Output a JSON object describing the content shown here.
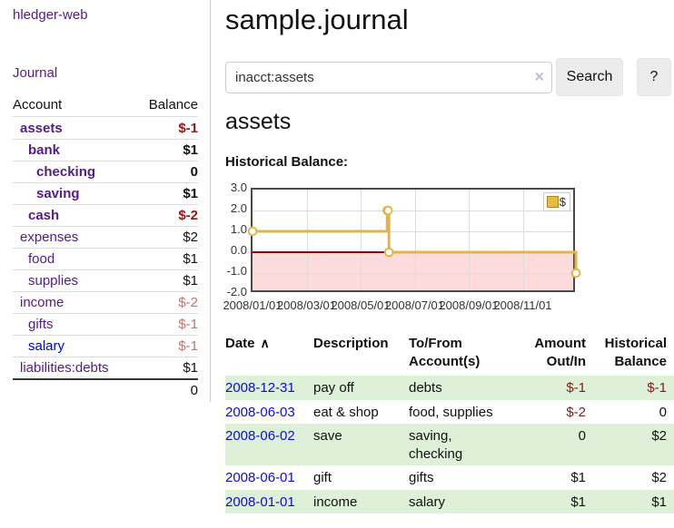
{
  "app": {
    "brand": "hledger-web",
    "nav_journal": "Journal"
  },
  "colors": {
    "link_purple": "#551a8b",
    "link_blue": "#0000e0",
    "date_blue": "#0b0bdd",
    "negative_strong": "#9b1313",
    "negative_soft": "#c47270",
    "row_green": "#dff0d8",
    "chart_line_gold": "#e3b549",
    "chart_negative_fill": "#fbdbdb",
    "chart_zero_line": "#8b0000"
  },
  "sidebar": {
    "header": {
      "account": "Account",
      "balance": "Balance"
    },
    "rows": [
      {
        "label": "assets",
        "level": 1,
        "bold": true,
        "blue": false,
        "balance": "$-1",
        "tone": "neg"
      },
      {
        "label": "bank",
        "level": 2,
        "bold": true,
        "blue": false,
        "balance": "$1",
        "tone": "plain"
      },
      {
        "label": "checking",
        "level": 3,
        "bold": true,
        "blue": false,
        "balance": "0",
        "tone": "plain"
      },
      {
        "label": "saving",
        "level": 3,
        "bold": true,
        "blue": false,
        "balance": "$1",
        "tone": "plain"
      },
      {
        "label": "cash",
        "level": 2,
        "bold": true,
        "blue": false,
        "balance": "$-2",
        "tone": "neg"
      },
      {
        "label": "expenses",
        "level": 1,
        "bold": false,
        "blue": false,
        "balance": "$2",
        "tone": "plain"
      },
      {
        "label": "food",
        "level": 2,
        "bold": false,
        "blue": false,
        "balance": "$1",
        "tone": "plain"
      },
      {
        "label": "supplies",
        "level": 2,
        "bold": false,
        "blue": false,
        "balance": "$1",
        "tone": "plain"
      },
      {
        "label": "income",
        "level": 1,
        "bold": false,
        "blue": false,
        "balance": "$-2",
        "tone": "neg-soft"
      },
      {
        "label": "gifts",
        "level": 2,
        "bold": false,
        "blue": false,
        "balance": "$-1",
        "tone": "neg-soft"
      },
      {
        "label": "salary",
        "level": 2,
        "bold": false,
        "blue": true,
        "balance": "$-1",
        "tone": "neg-soft"
      },
      {
        "label": "liabilities:debts",
        "level": 1,
        "bold": false,
        "blue": false,
        "balance": "$1",
        "tone": "plain"
      }
    ],
    "total": "0"
  },
  "main": {
    "title": "sample.journal",
    "search": {
      "value": "inacct:assets",
      "clear_icon": "×",
      "search_label": "Search",
      "help_label": "?"
    },
    "account_title": "assets",
    "section_label": "Historical Balance:"
  },
  "chart_data": {
    "type": "line",
    "step": true,
    "title": "Historical Balance",
    "series": [
      {
        "name": "$",
        "points": [
          [
            "2008-01-01",
            1
          ],
          [
            "2008-06-01",
            2
          ],
          [
            "2008-06-02",
            2
          ],
          [
            "2008-06-03",
            0
          ],
          [
            "2008-12-31",
            -1
          ]
        ]
      }
    ],
    "x_range": [
      "2008-01-01",
      "2009-01-01"
    ],
    "ylim": [
      -2.0,
      3.0
    ],
    "yticks": [
      3.0,
      2.0,
      1.0,
      0.0,
      -1.0,
      -2.0
    ],
    "xticks": [
      "2008/01/01",
      "2008/03/01",
      "2008/05/01",
      "2008/07/01",
      "2008/09/01",
      "2008/11/01"
    ],
    "legend": "$",
    "legend_position": "top-right",
    "grid": true
  },
  "transactions": {
    "headers": {
      "date": "Date",
      "sort_icon": "∧",
      "description": "Description",
      "accounts": "To/From\nAccount(s)",
      "amount": "Amount\nOut/In",
      "balance": "Historical\nBalance"
    },
    "rows": [
      {
        "date": "2008-12-31",
        "description": "pay off",
        "accounts": "debts",
        "amount": "$-1",
        "balance": "$-1",
        "amount_neg": true,
        "balance_neg": true
      },
      {
        "date": "2008-06-03",
        "description": "eat & shop",
        "accounts": "food, supplies",
        "amount": "$-2",
        "balance": "0",
        "amount_neg": true,
        "balance_neg": false
      },
      {
        "date": "2008-06-02",
        "description": "save",
        "accounts": "saving,\nchecking",
        "amount": "0",
        "balance": "$2",
        "amount_neg": false,
        "balance_neg": false
      },
      {
        "date": "2008-06-01",
        "description": "gift",
        "accounts": "gifts",
        "amount": "$1",
        "balance": "$2",
        "amount_neg": false,
        "balance_neg": false
      },
      {
        "date": "2008-01-01",
        "description": "income",
        "accounts": "salary",
        "amount": "$1",
        "balance": "$1",
        "amount_neg": false,
        "balance_neg": false
      }
    ]
  }
}
